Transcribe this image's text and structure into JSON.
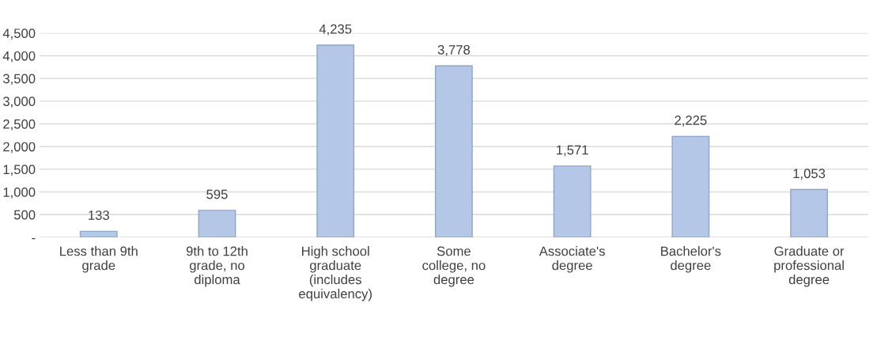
{
  "chart_data": {
    "type": "bar",
    "categories": [
      "Less than 9th\ngrade",
      "9th to 12th\ngrade, no\ndiploma",
      "High school\ngraduate\n(includes\nequivalency)",
      "Some\ncollege, no\ndegree",
      "Associate's\ndegree",
      "Bachelor's\ndegree",
      "Graduate or\nprofessional\ndegree"
    ],
    "values": [
      133,
      595,
      4235,
      3778,
      1571,
      2225,
      1053
    ],
    "value_labels": [
      "133",
      "595",
      "4,235",
      "3,778",
      "1,571",
      "2,225",
      "1,053"
    ],
    "color": "#b4c7e7",
    "ylim": [
      0,
      4500
    ],
    "yticks": [
      {
        "value": 0,
        "label": "-"
      },
      {
        "value": 500,
        "label": "500"
      },
      {
        "value": 1000,
        "label": "1,000"
      },
      {
        "value": 1500,
        "label": "1,500"
      },
      {
        "value": 2000,
        "label": "2,000"
      },
      {
        "value": 2500,
        "label": "2,500"
      },
      {
        "value": 3000,
        "label": "3,000"
      },
      {
        "value": 3500,
        "label": "3,500"
      },
      {
        "value": 4000,
        "label": "4,000"
      },
      {
        "value": 4500,
        "label": "4,500"
      }
    ],
    "grid": "y"
  }
}
